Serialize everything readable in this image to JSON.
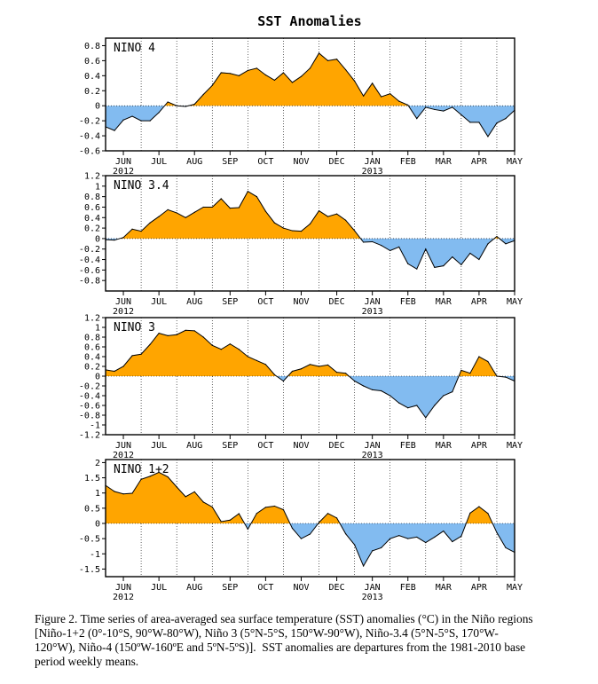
{
  "figure": {
    "title": "SST Anomalies",
    "month_labels": [
      "JUN",
      "JUL",
      "AUG",
      "SEP",
      "OCT",
      "NOV",
      "DEC",
      "JAN",
      "FEB",
      "MAR",
      "APR",
      "MAY"
    ],
    "year_labels": [
      {
        "after_month": "JUN",
        "label": "2012"
      },
      {
        "after_month": "JAN",
        "label": "2013"
      }
    ],
    "colors": {
      "positive": "#ffa500",
      "negative": "#82bbf0",
      "line": "#000000"
    }
  },
  "caption": {
    "lines": [
      "Figure 2. Time series of area-averaged sea surface temperature (SST) anomalies (°C) in the Niño regions",
      "[Niño-1+2 (0°-10°S, 90°W-80°W), Niño 3 (5°N-5°S, 150°W-90°W), Niño-3.4 (5°N-5°S, 170°W-",
      "120°W), Niño-4 (150ºW-160ºE and 5ºN-5ºS)].  SST anomalies are departures from the 1981-2010 base",
      "period weekly means."
    ]
  },
  "chart_data": [
    {
      "type": "area",
      "title": "NINO 4",
      "xlabel": "",
      "ylabel": "",
      "ylim": [
        -0.6,
        0.9
      ],
      "yticks": [
        -0.6,
        -0.4,
        -0.2,
        0,
        0.2,
        0.4,
        0.6,
        0.8
      ],
      "tick_labels": [
        "-0.6",
        "-0.4",
        "-0.2",
        "0",
        "0.2",
        "0.4",
        "0.6",
        "0.8"
      ],
      "x": [
        0.0,
        0.25,
        0.5,
        0.75,
        1.0,
        1.25,
        1.5,
        1.75,
        2.0,
        2.25,
        2.5,
        2.75,
        3.0,
        3.25,
        3.5,
        3.75,
        4.0,
        4.25,
        4.5,
        4.75,
        5.0,
        5.25,
        5.5,
        5.75,
        6.0,
        6.25,
        6.5,
        6.75,
        7.0,
        7.25,
        7.5,
        7.75,
        8.0,
        8.25,
        8.5,
        8.75,
        9.0,
        9.25,
        9.5,
        9.75,
        10.0,
        10.25,
        10.5,
        10.75,
        11.0,
        11.25,
        11.5
      ],
      "values": [
        -0.28,
        -0.33,
        -0.19,
        -0.14,
        -0.2,
        -0.2,
        -0.09,
        0.05,
        0.0,
        -0.01,
        0.02,
        0.15,
        0.27,
        0.44,
        0.43,
        0.4,
        0.47,
        0.5,
        0.41,
        0.34,
        0.44,
        0.31,
        0.39,
        0.5,
        0.7,
        0.6,
        0.62,
        0.48,
        0.33,
        0.13,
        0.3,
        0.12,
        0.16,
        0.06,
        0.01,
        -0.17,
        -0.02,
        -0.05,
        -0.07,
        -0.02,
        -0.12,
        -0.22,
        -0.22,
        -0.41,
        -0.23,
        -0.17,
        -0.06
      ]
    },
    {
      "type": "area",
      "title": "NINO 3.4",
      "xlabel": "",
      "ylabel": "",
      "ylim": [
        -1.0,
        1.2
      ],
      "yticks": [
        -0.8,
        -0.6,
        -0.4,
        -0.2,
        0,
        0.2,
        0.4,
        0.6,
        0.8,
        1,
        1.2
      ],
      "tick_labels": [
        "-0.8",
        "-0.6",
        "-0.4",
        "-0.2",
        "0",
        "0.2",
        "0.4",
        "0.6",
        "0.8",
        "1",
        "1.2"
      ],
      "x": [
        0.0,
        0.25,
        0.5,
        0.75,
        1.0,
        1.25,
        1.5,
        1.75,
        2.0,
        2.25,
        2.5,
        2.75,
        3.0,
        3.25,
        3.5,
        3.75,
        4.0,
        4.25,
        4.5,
        4.75,
        5.0,
        5.25,
        5.5,
        5.75,
        6.0,
        6.25,
        6.5,
        6.75,
        7.0,
        7.25,
        7.5,
        7.75,
        8.0,
        8.25,
        8.5,
        8.75,
        9.0,
        9.25,
        9.5,
        9.75,
        10.0,
        10.25,
        10.5,
        10.75,
        11.0,
        11.25,
        11.5
      ],
      "values": [
        -0.02,
        -0.03,
        0.02,
        0.18,
        0.14,
        0.3,
        0.42,
        0.55,
        0.49,
        0.4,
        0.5,
        0.6,
        0.6,
        0.76,
        0.58,
        0.59,
        0.9,
        0.8,
        0.52,
        0.3,
        0.2,
        0.15,
        0.14,
        0.28,
        0.53,
        0.42,
        0.47,
        0.35,
        0.15,
        -0.07,
        -0.06,
        -0.13,
        -0.23,
        -0.16,
        -0.48,
        -0.58,
        -0.2,
        -0.55,
        -0.52,
        -0.35,
        -0.5,
        -0.28,
        -0.4,
        -0.1,
        0.04,
        -0.1,
        -0.04
      ]
    },
    {
      "type": "area",
      "title": "NINO 3",
      "xlabel": "",
      "ylabel": "",
      "ylim": [
        -1.2,
        1.2
      ],
      "yticks": [
        -1.2,
        -1,
        -0.8,
        -0.6,
        -0.4,
        -0.2,
        0,
        0.2,
        0.4,
        0.6,
        0.8,
        1,
        1.2
      ],
      "tick_labels": [
        "-1.2",
        "-1",
        "-0.8",
        "-0.6",
        "-0.4",
        "-0.2",
        "0",
        "0.2",
        "0.4",
        "0.6",
        "0.8",
        "1",
        "1.2"
      ],
      "x": [
        0.0,
        0.25,
        0.5,
        0.75,
        1.0,
        1.25,
        1.5,
        1.75,
        2.0,
        2.25,
        2.5,
        2.75,
        3.0,
        3.25,
        3.5,
        3.75,
        4.0,
        4.25,
        4.5,
        4.75,
        5.0,
        5.25,
        5.5,
        5.75,
        6.0,
        6.25,
        6.5,
        6.75,
        7.0,
        7.25,
        7.5,
        7.75,
        8.0,
        8.25,
        8.5,
        8.75,
        9.0,
        9.25,
        9.5,
        9.75,
        10.0,
        10.25,
        10.5,
        10.75,
        11.0,
        11.25,
        11.5
      ],
      "values": [
        0.13,
        0.1,
        0.2,
        0.42,
        0.45,
        0.65,
        0.88,
        0.83,
        0.85,
        0.94,
        0.93,
        0.8,
        0.63,
        0.55,
        0.66,
        0.55,
        0.4,
        0.32,
        0.24,
        0.03,
        -0.1,
        0.1,
        0.15,
        0.24,
        0.2,
        0.23,
        0.08,
        0.06,
        -0.1,
        -0.2,
        -0.28,
        -0.3,
        -0.4,
        -0.55,
        -0.65,
        -0.6,
        -0.85,
        -0.6,
        -0.4,
        -0.32,
        0.12,
        0.06,
        0.4,
        0.3,
        0.0,
        -0.02,
        -0.1
      ]
    },
    {
      "type": "area",
      "title": "NINO 1+2",
      "xlabel": "",
      "ylabel": "",
      "ylim": [
        -1.75,
        2.1
      ],
      "yticks": [
        -1.5,
        -1,
        -0.5,
        0,
        0.5,
        1,
        1.5,
        2
      ],
      "tick_labels": [
        "-1.5",
        "-1",
        "-0.5",
        "0",
        "0.5",
        "1",
        "1.5",
        "2"
      ],
      "x": [
        0.0,
        0.25,
        0.5,
        0.75,
        1.0,
        1.25,
        1.5,
        1.75,
        2.0,
        2.25,
        2.5,
        2.75,
        3.0,
        3.25,
        3.5,
        3.75,
        4.0,
        4.25,
        4.5,
        4.75,
        5.0,
        5.25,
        5.5,
        5.75,
        6.0,
        6.25,
        6.5,
        6.75,
        7.0,
        7.25,
        7.5,
        7.75,
        8.0,
        8.25,
        8.5,
        8.75,
        9.0,
        9.25,
        9.5,
        9.75,
        10.0,
        10.25,
        10.5,
        10.75,
        11.0,
        11.25,
        11.5
      ],
      "values": [
        1.25,
        1.05,
        0.97,
        0.99,
        1.45,
        1.55,
        1.68,
        1.53,
        1.2,
        0.88,
        1.04,
        0.7,
        0.54,
        0.06,
        0.11,
        0.32,
        -0.19,
        0.33,
        0.53,
        0.57,
        0.45,
        -0.16,
        -0.5,
        -0.35,
        0.03,
        0.33,
        0.18,
        -0.34,
        -0.7,
        -1.4,
        -0.9,
        -0.8,
        -0.5,
        -0.4,
        -0.5,
        -0.45,
        -0.63,
        -0.45,
        -0.25,
        -0.6,
        -0.42,
        0.34,
        0.55,
        0.33,
        -0.3,
        -0.8,
        -0.95
      ]
    }
  ]
}
